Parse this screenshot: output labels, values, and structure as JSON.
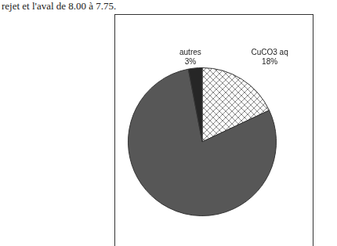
{
  "chart_data": {
    "type": "pie",
    "annotations": [
      "rejet et l'aval de 8.00 à 7.75."
    ],
    "categories": [
      "CuCO3 aq",
      null,
      "autres"
    ],
    "values": [
      18,
      79,
      3
    ],
    "value_labels": [
      "18%",
      null,
      "3%"
    ],
    "colors": [
      "#ffffff",
      "#575757",
      "#262626"
    ],
    "data_labels": true
  }
}
